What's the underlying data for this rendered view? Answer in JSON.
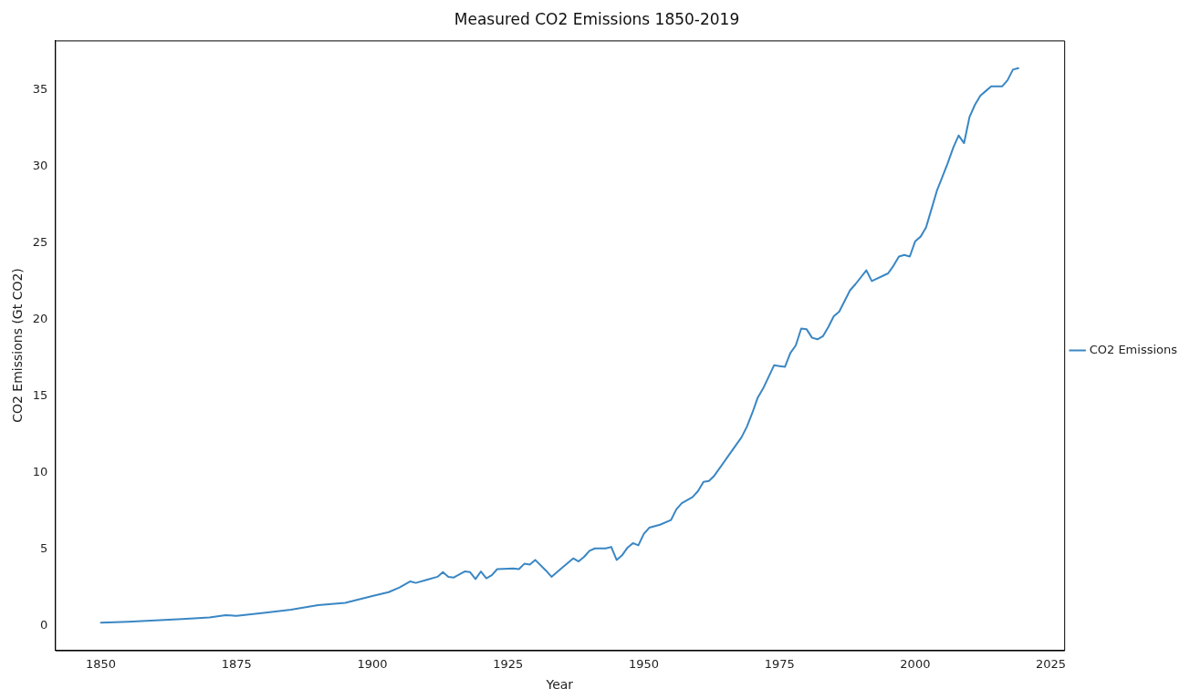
{
  "chart_data": {
    "type": "line",
    "title": "Measured CO2 Emissions 1850-2019",
    "xlabel": "Year",
    "ylabel": "CO2 Emissions (Gt CO2)",
    "xlim": [
      1841.55,
      2027.45
    ],
    "xticks": [
      1850,
      1875,
      1900,
      1925,
      1950,
      1975,
      2000,
      2025
    ],
    "ylim": [
      -1.6,
      38.2
    ],
    "yticks": [
      0,
      5,
      10,
      15,
      20,
      25,
      30,
      35
    ],
    "grid": false,
    "legend": "right",
    "marker": "none",
    "line_style": "solid",
    "series": [
      {
        "name": "CO2 Emissions",
        "color": "#3a87c4",
        "x": [
          1850,
          1855,
          1860,
          1865,
          1870,
          1873,
          1875,
          1880,
          1885,
          1890,
          1895,
          1900,
          1903,
          1905,
          1907,
          1908,
          1910,
          1912,
          1913,
          1914,
          1915,
          1917,
          1918,
          1919,
          1920,
          1921,
          1922,
          1923,
          1926,
          1927,
          1928,
          1929,
          1930,
          1932,
          1933,
          1935,
          1937,
          1938,
          1939,
          1940,
          1941,
          1943,
          1944,
          1945,
          1946,
          1947,
          1948,
          1949,
          1950,
          1951,
          1953,
          1955,
          1956,
          1957,
          1959,
          1960,
          1961,
          1962,
          1963,
          1966,
          1968,
          1969,
          1970,
          1971,
          1972,
          1974,
          1975,
          1976,
          1977,
          1978,
          1979,
          1980,
          1981,
          1982,
          1983,
          1984,
          1985,
          1986,
          1988,
          1989,
          1991,
          1992,
          1995,
          1996,
          1997,
          1998,
          1999,
          2000,
          2001,
          2002,
          2003,
          2004,
          2005,
          2006,
          2007,
          2008,
          2009,
          2010,
          2011,
          2012,
          2013,
          2014,
          2015,
          2016,
          2017,
          2018,
          2019
        ],
        "values": [
          0.2,
          0.27,
          0.35,
          0.45,
          0.55,
          0.7,
          0.65,
          0.85,
          1.05,
          1.35,
          1.5,
          1.95,
          2.2,
          2.5,
          2.9,
          2.8,
          3.0,
          3.2,
          3.5,
          3.2,
          3.15,
          3.55,
          3.5,
          3.05,
          3.55,
          3.1,
          3.3,
          3.7,
          3.75,
          3.7,
          4.05,
          4.0,
          4.3,
          3.6,
          3.2,
          3.8,
          4.4,
          4.2,
          4.5,
          4.9,
          5.05,
          5.05,
          5.15,
          4.3,
          4.6,
          5.1,
          5.4,
          5.25,
          6.0,
          6.4,
          6.6,
          6.9,
          7.6,
          8.0,
          8.4,
          8.8,
          9.4,
          9.45,
          9.8,
          11.3,
          12.3,
          13.0,
          13.9,
          14.9,
          15.5,
          17.0,
          16.95,
          16.9,
          17.8,
          18.3,
          19.4,
          19.35,
          18.8,
          18.7,
          18.9,
          19.5,
          20.2,
          20.5,
          21.9,
          22.3,
          23.2,
          22.5,
          23.0,
          23.5,
          24.1,
          24.2,
          24.1,
          25.1,
          25.4,
          26.0,
          27.2,
          28.4,
          29.3,
          30.2,
          31.2,
          32.0,
          31.5,
          33.2,
          34.0,
          34.6,
          34.9,
          35.2,
          35.2,
          35.2,
          35.6,
          36.3,
          36.4
        ]
      }
    ]
  }
}
